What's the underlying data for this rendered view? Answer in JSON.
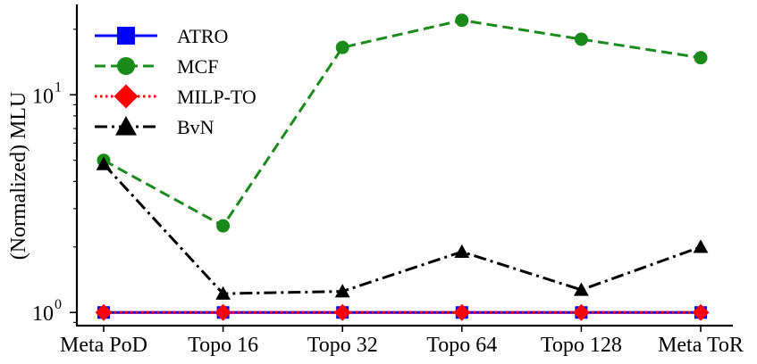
{
  "chart_data": {
    "type": "line",
    "categories": [
      "Meta PoD",
      "Topo 16",
      "Topo 32",
      "Topo 64",
      "Topo 128",
      "Meta ToR"
    ],
    "ylabel": "(Normalized) MLU",
    "xlabel": "",
    "title": "",
    "yscale": "log",
    "ylim": [
      0.87,
      26
    ],
    "yticks": [
      {
        "value": 1,
        "base": "10",
        "exp": "0"
      },
      {
        "value": 10,
        "base": "10",
        "exp": "1"
      }
    ],
    "grid": false,
    "legend_position": "top-left",
    "series": [
      {
        "name": "ATRO",
        "values": [
          1,
          1,
          1,
          1,
          1,
          1
        ],
        "color": "#0000ff",
        "marker": "square",
        "line": "solid"
      },
      {
        "name": "MCF",
        "values": [
          5.0,
          2.5,
          16.5,
          22,
          18,
          14.8
        ],
        "color": "#1a8a1a",
        "marker": "circle",
        "line": "dashed"
      },
      {
        "name": "MILP-TO",
        "values": [
          1,
          1,
          1,
          1,
          1,
          1
        ],
        "color": "#ff0000",
        "marker": "diamond",
        "line": "dotted"
      },
      {
        "name": "BvN",
        "values": [
          4.8,
          1.22,
          1.25,
          1.9,
          1.27,
          2.0
        ],
        "color": "#000000",
        "marker": "triangle",
        "line": "dashdot"
      }
    ]
  }
}
